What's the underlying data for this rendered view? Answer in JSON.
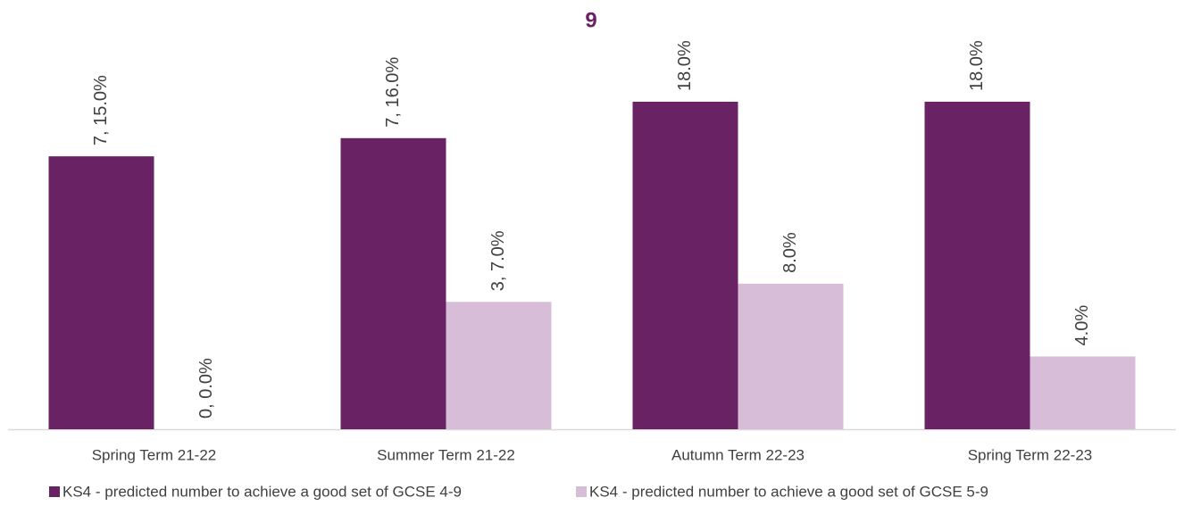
{
  "chart_data": {
    "type": "bar",
    "title": "9",
    "categories": [
      "Spring Term 21-22",
      "Summer Term 21-22",
      "Autumn Term 22-23",
      "Spring Term 22-23"
    ],
    "series": [
      {
        "name": "KS4 - predicted number to achieve a good set of GCSE 4-9",
        "color": "#692264",
        "values": [
          15,
          16,
          18,
          18
        ],
        "value_labels": [
          "7, 15.0%",
          "7, 16.0%",
          "18.0%",
          "18.0%"
        ]
      },
      {
        "name": "KS4 - predicted number to achieve a good set of GCSE 5-9",
        "color": "#d8bdd8",
        "values": [
          0,
          7,
          8,
          4
        ],
        "value_labels": [
          "0, 0.0%",
          "3, 7.0%",
          "8.0%",
          "4.0%"
        ]
      }
    ],
    "legend": "bottom"
  }
}
